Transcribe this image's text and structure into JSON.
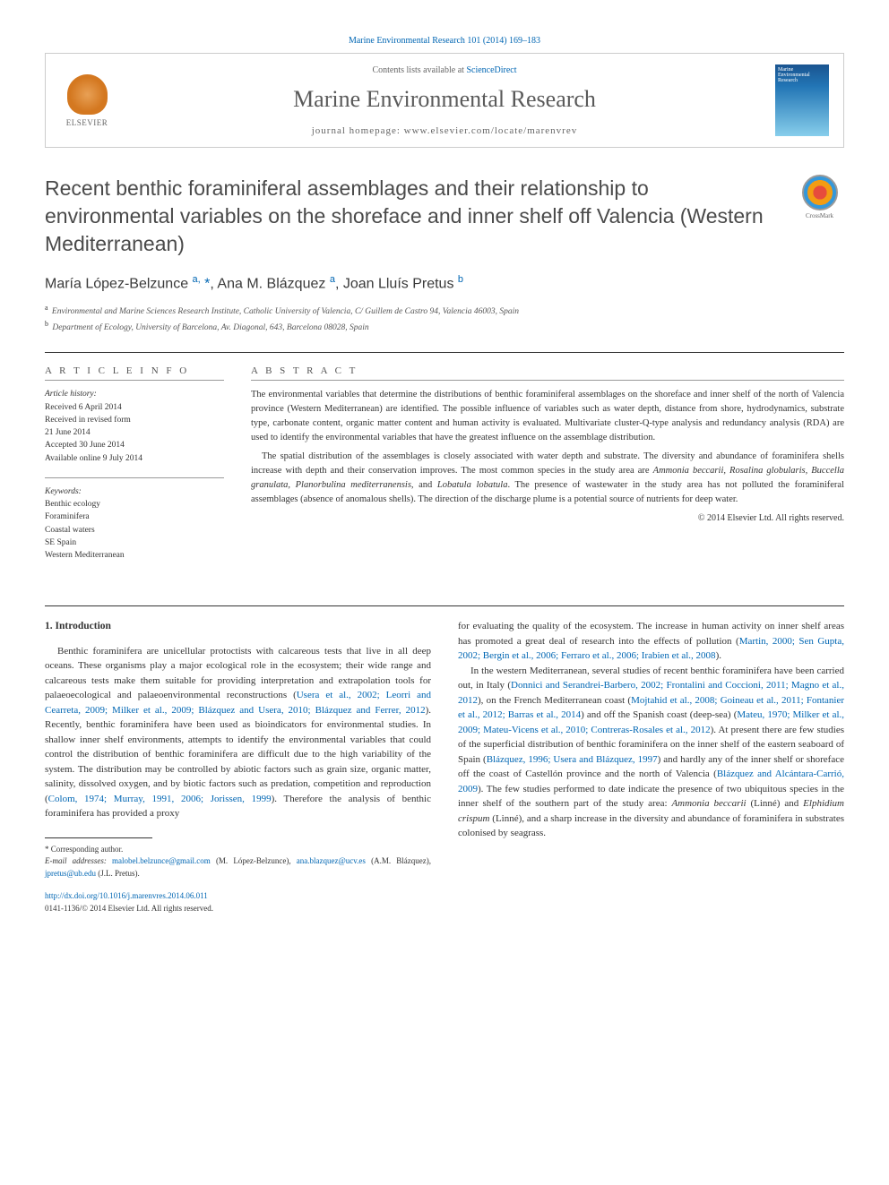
{
  "citation": "Marine Environmental Research 101 (2014) 169–183",
  "header": {
    "contents_prefix": "Contents lists available at ",
    "contents_link": "ScienceDirect",
    "journal_name": "Marine Environmental Research",
    "homepage_label": "journal homepage: www.elsevier.com/locate/marenvrev",
    "elsevier": "ELSEVIER",
    "cover_text": "Marine Environmental Research"
  },
  "crossmark": "CrossMark",
  "title": "Recent benthic foraminiferal assemblages and their relationship to environmental variables on the shoreface and inner shelf off Valencia (Western Mediterranean)",
  "authors_html": "María López-Belzunce <sup>a,</sup> <span class='corr'>*</span>, Ana M. Blázquez <sup>a</sup>, Joan Lluís Pretus <sup>b</sup>",
  "affiliations": {
    "a": "Environmental and Marine Sciences Research Institute, Catholic University of Valencia, C/ Guillem de Castro 94, Valencia 46003, Spain",
    "b": "Department of Ecology, University of Barcelona, Av. Diagonal, 643, Barcelona 08028, Spain"
  },
  "info": {
    "heading_info": "A R T I C L E  I N F O",
    "heading_abstract": "A B S T R A C T",
    "history_label": "Article history:",
    "history": [
      "Received 6 April 2014",
      "Received in revised form",
      "21 June 2014",
      "Accepted 30 June 2014",
      "Available online 9 July 2014"
    ],
    "keywords_label": "Keywords:",
    "keywords": [
      "Benthic ecology",
      "Foraminifera",
      "Coastal waters",
      "SE Spain",
      "Western Mediterranean"
    ]
  },
  "abstract": {
    "p1": "The environmental variables that determine the distributions of benthic foraminiferal assemblages on the shoreface and inner shelf of the north of Valencia province (Western Mediterranean) are identified. The possible influence of variables such as water depth, distance from shore, hydrodynamics, substrate type, carbonate content, organic matter content and human activity is evaluated. Multivariate cluster-Q-type analysis and redundancy analysis (RDA) are used to identify the environmental variables that have the greatest influence on the assemblage distribution.",
    "p2_pre": "The spatial distribution of the assemblages is closely associated with water depth and substrate. The diversity and abundance of foraminifera shells increase with depth and their conservation improves. The most common species in the study area are ",
    "p2_species": "Ammonia beccarii, Rosalina globularis, Buccella granulata, Planorbulina mediterranensis",
    "p2_mid": ", and ",
    "p2_species2": "Lobatula lobatula",
    "p2_post": ". The presence of wastewater in the study area has not polluted the foraminiferal assemblages (absence of anomalous shells). The direction of the discharge plume is a potential source of nutrients for deep water.",
    "copyright": "© 2014 Elsevier Ltd. All rights reserved."
  },
  "section1_heading": "1. Introduction",
  "col1": {
    "p1_a": "Benthic foraminifera are unicellular protoctists with calcareous tests that live in all deep oceans. These organisms play a major ecological role in the ecosystem; their wide range and calcareous tests make them suitable for providing interpretation and extrapolation tools for palaeoecological and palaeoenvironmental reconstructions (",
    "p1_ref1": "Usera et al., 2002; Leorri and Cearreta, 2009; Milker et al., 2009; Blázquez and Usera, 2010; Blázquez and Ferrer, 2012",
    "p1_b": "). Recently, benthic foraminifera have been used as bioindicators for environmental studies. In shallow inner shelf environments, attempts to identify the environmental variables that could control the distribution of benthic foraminifera are difficult due to the high variability of the system. The distribution may be controlled by abiotic factors such as grain size, organic matter, salinity, dissolved oxygen, and by biotic factors such as predation, competition and reproduction (",
    "p1_ref2": "Colom, 1974; Murray, 1991, 2006; Jorissen, 1999",
    "p1_c": "). Therefore the analysis of benthic foraminifera has provided a proxy"
  },
  "col2": {
    "p1_a": "for evaluating the quality of the ecosystem. The increase in human activity on inner shelf areas has promoted a great deal of research into the effects of pollution (",
    "p1_ref1": "Martin, 2000; Sen Gupta, 2002; Bergin et al., 2006; Ferraro et al., 2006; Irabien et al., 2008",
    "p1_b": ").",
    "p2_a": "In the western Mediterranean, several studies of recent benthic foraminifera have been carried out, in Italy (",
    "p2_ref1": "Donnici and Serandrei-Barbero, 2002; Frontalini and Coccioni, 2011; Magno et al., 2012",
    "p2_b": "), on the French Mediterranean coast (",
    "p2_ref2": "Mojtahid et al., 2008; Goineau et al., 2011; Fontanier et al., 2012; Barras et al., 2014",
    "p2_c": ") and off the Spanish coast (deep-sea) (",
    "p2_ref3": "Mateu, 1970; Milker et al., 2009; Mateu-Vicens et al., 2010; Contreras-Rosales et al., 2012",
    "p2_d": "). At present there are few studies of the superficial distribution of benthic foraminifera on the inner shelf of the eastern seaboard of Spain (",
    "p2_ref4": "Blázquez, 1996; Usera and Blázquez, 1997",
    "p2_e": ") and hardly any of the inner shelf or shoreface off the coast of Castellón province and the north of Valencia (",
    "p2_ref5": "Blázquez and Alcántara-Carrió, 2009",
    "p2_f": "). The few studies performed to date indicate the presence of two ubiquitous species in the inner shelf of the southern part of the study area: ",
    "p2_sp1": "Ammonia beccarii",
    "p2_g": " (Linné) and ",
    "p2_sp2": "Elphidium crispum",
    "p2_h": " (Linné), and a sharp increase in the diversity and abundance of foraminifera in substrates colonised by seagrass."
  },
  "footnotes": {
    "corr": "* Corresponding author.",
    "email_label": "E-mail addresses:",
    "e1": "malobel.belzunce@gmail.com",
    "n1": " (M. López-Belzunce), ",
    "e2": "ana.blazquez@ucv.es",
    "n2": " (A.M. Blázquez), ",
    "e3": "jpretus@ub.edu",
    "n3": " (J.L. Pretus)."
  },
  "doi": {
    "link": "http://dx.doi.org/10.1016/j.marenvres.2014.06.011",
    "issn": "0141-1136/© 2014 Elsevier Ltd. All rights reserved."
  },
  "colors": {
    "link": "#0066b3",
    "text": "#333333",
    "heading": "#4a4a4a"
  }
}
